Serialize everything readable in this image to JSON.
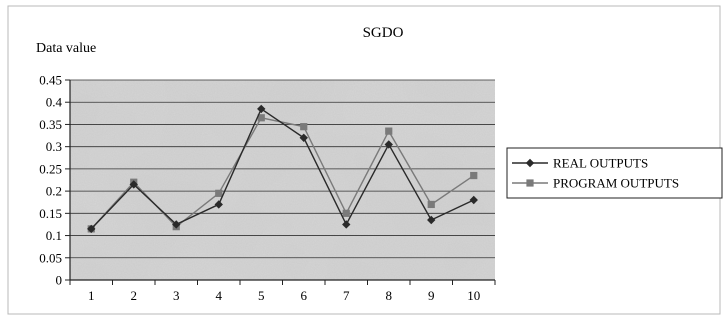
{
  "chart_data": {
    "type": "line",
    "title": "SGDO",
    "xlabel": "",
    "ylabel": "Data value",
    "categories": [
      "1",
      "2",
      "3",
      "4",
      "5",
      "6",
      "7",
      "8",
      "9",
      "10"
    ],
    "ylim": [
      0,
      0.45
    ],
    "yticks": [
      "0",
      "0.05",
      "0.1",
      "0.15",
      "0.2",
      "0.25",
      "0.3",
      "0.35",
      "0.4",
      "0.45"
    ],
    "grid": true,
    "legend_position": "right",
    "series": [
      {
        "name": "REAL OUTPUTS",
        "marker": "diamond",
        "color": "#2a2a2a",
        "values": [
          0.115,
          0.215,
          0.125,
          0.17,
          0.385,
          0.32,
          0.125,
          0.305,
          0.135,
          0.18
        ]
      },
      {
        "name": "PROGRAM  OUTPUTS",
        "marker": "square",
        "color": "#7a7a7a",
        "values": [
          0.115,
          0.22,
          0.12,
          0.195,
          0.365,
          0.345,
          0.15,
          0.335,
          0.17,
          0.235
        ]
      }
    ]
  }
}
